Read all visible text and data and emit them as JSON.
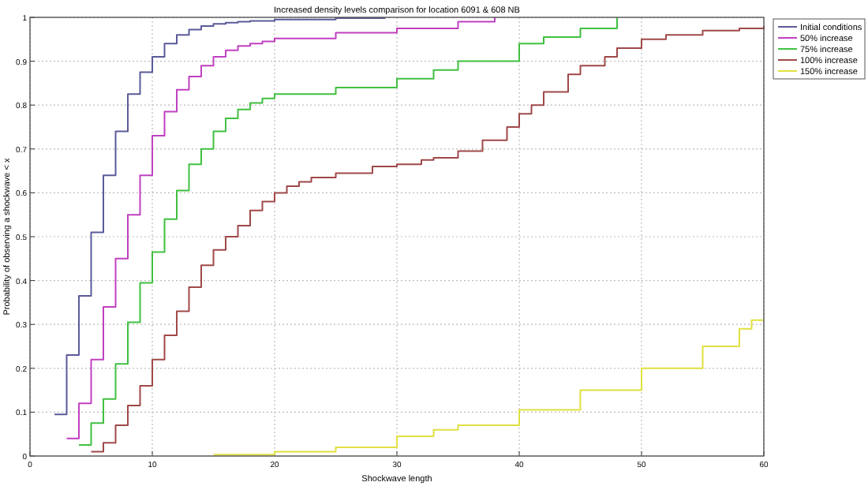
{
  "chart_data": {
    "type": "step",
    "title": "Increased density levels comparison for location 6091 & 608 NB",
    "xlabel": "Shockwave length",
    "ylabel": "Probability of observing a shockwave < x",
    "xlim": [
      0,
      60
    ],
    "ylim": [
      0,
      1
    ],
    "xticks": [
      0,
      10,
      20,
      30,
      40,
      50,
      60
    ],
    "yticks": [
      0,
      0.1,
      0.2,
      0.3,
      0.4,
      0.5,
      0.6,
      0.7,
      0.8,
      0.9,
      1
    ],
    "grid": true,
    "legend": "top right",
    "line_style": "solid",
    "marker": "none",
    "series": [
      {
        "name": "Initial conditions",
        "color": "#5a5a9a",
        "x": [
          2,
          3,
          4,
          5,
          6,
          7,
          8,
          9,
          10,
          11,
          12,
          13,
          14,
          15,
          16,
          17,
          18,
          20,
          25,
          29
        ],
        "values": [
          0.095,
          0.23,
          0.365,
          0.51,
          0.64,
          0.74,
          0.825,
          0.875,
          0.91,
          0.94,
          0.96,
          0.972,
          0.98,
          0.985,
          0.988,
          0.99,
          0.992,
          0.995,
          0.998,
          1.0
        ]
      },
      {
        "name": "50% increase",
        "color": "#c040c0",
        "x": [
          3,
          4,
          5,
          6,
          7,
          8,
          9,
          10,
          11,
          12,
          13,
          14,
          15,
          16,
          17,
          18,
          19,
          20,
          25,
          30,
          35,
          38
        ],
        "values": [
          0.04,
          0.12,
          0.22,
          0.34,
          0.45,
          0.55,
          0.64,
          0.73,
          0.785,
          0.835,
          0.865,
          0.89,
          0.91,
          0.925,
          0.935,
          0.94,
          0.945,
          0.952,
          0.965,
          0.975,
          0.99,
          1.0
        ]
      },
      {
        "name": "75% increase",
        "color": "#40c040",
        "x": [
          4,
          5,
          6,
          7,
          8,
          9,
          10,
          11,
          12,
          13,
          14,
          15,
          16,
          17,
          18,
          19,
          20,
          25,
          30,
          33,
          35,
          40,
          42,
          45,
          48
        ],
        "values": [
          0.025,
          0.075,
          0.13,
          0.21,
          0.305,
          0.395,
          0.465,
          0.54,
          0.605,
          0.665,
          0.7,
          0.74,
          0.77,
          0.79,
          0.805,
          0.815,
          0.825,
          0.84,
          0.86,
          0.88,
          0.9,
          0.94,
          0.955,
          0.975,
          1.0
        ]
      },
      {
        "name": "100% increase",
        "color": "#a04848",
        "x": [
          5,
          6,
          7,
          8,
          9,
          10,
          11,
          12,
          13,
          14,
          15,
          16,
          17,
          18,
          19,
          20,
          21,
          22,
          23,
          25,
          28,
          30,
          32,
          33,
          35,
          37,
          39,
          40,
          41,
          42,
          44,
          45,
          47,
          48,
          50,
          52,
          55,
          58,
          60
        ],
        "values": [
          0.01,
          0.03,
          0.07,
          0.115,
          0.16,
          0.22,
          0.275,
          0.33,
          0.385,
          0.435,
          0.47,
          0.5,
          0.525,
          0.56,
          0.58,
          0.6,
          0.615,
          0.625,
          0.635,
          0.645,
          0.66,
          0.665,
          0.675,
          0.68,
          0.695,
          0.72,
          0.75,
          0.78,
          0.8,
          0.83,
          0.87,
          0.89,
          0.91,
          0.93,
          0.95,
          0.96,
          0.97,
          0.975,
          0.98
        ]
      },
      {
        "name": "150% increase",
        "color": "#e0e040",
        "x": [
          15,
          20,
          25,
          30,
          33,
          35,
          40,
          45,
          50,
          55,
          58,
          59,
          60
        ],
        "values": [
          0.003,
          0.01,
          0.02,
          0.045,
          0.06,
          0.07,
          0.105,
          0.15,
          0.2,
          0.25,
          0.29,
          0.31,
          0.31
        ]
      }
    ]
  }
}
